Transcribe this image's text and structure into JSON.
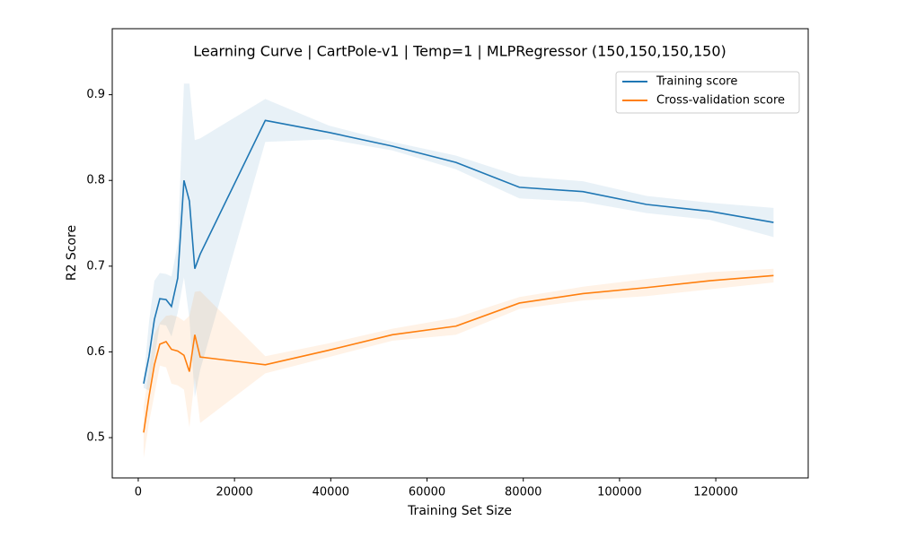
{
  "chart_data": {
    "type": "line",
    "title": "Learning Curve | CartPole-v1 | Temp=1 | MLPRegressor (150,150,150,150)",
    "x_label": "Training Set Size",
    "y_label": "R2 Score",
    "x": [
      1120,
      2240,
      3360,
      4480,
      5780,
      6900,
      8200,
      9500,
      10630,
      11750,
      12870,
      26400,
      39600,
      52800,
      66000,
      79200,
      92400,
      105600,
      118800,
      132000
    ],
    "series": [
      {
        "name": "Training score",
        "color": "#1f77b4",
        "values": [
          0.563,
          0.595,
          0.638,
          0.662,
          0.661,
          0.653,
          0.686,
          0.8,
          0.776,
          0.697,
          0.714,
          0.87,
          0.856,
          0.84,
          0.821,
          0.792,
          0.787,
          0.772,
          0.764,
          0.751
        ],
        "std": [
          0.005,
          0.04,
          0.045,
          0.03,
          0.03,
          0.035,
          0.04,
          0.113,
          0.137,
          0.15,
          0.135,
          0.025,
          0.008,
          0.005,
          0.008,
          0.013,
          0.012,
          0.01,
          0.01,
          0.017
        ]
      },
      {
        "name": "Cross-validation score",
        "color": "#ff7f0e",
        "values": [
          0.506,
          0.548,
          0.585,
          0.609,
          0.612,
          0.603,
          0.601,
          0.596,
          0.577,
          0.62,
          0.594,
          0.585,
          0.602,
          0.62,
          0.63,
          0.657,
          0.668,
          0.675,
          0.683,
          0.689
        ],
        "std": [
          0.03,
          0.03,
          0.035,
          0.025,
          0.03,
          0.04,
          0.04,
          0.04,
          0.065,
          0.05,
          0.077,
          0.01,
          0.008,
          0.007,
          0.01,
          0.007,
          0.008,
          0.01,
          0.01,
          0.008
        ]
      }
    ],
    "xlim": [
      -5400,
      139200
    ],
    "ylim": [
      0.453,
      0.977
    ],
    "xticks": [
      0,
      20000,
      40000,
      60000,
      80000,
      100000,
      120000
    ],
    "yticks": [
      0.5,
      0.6,
      0.7,
      0.8,
      0.9
    ],
    "legend": "upper right"
  }
}
